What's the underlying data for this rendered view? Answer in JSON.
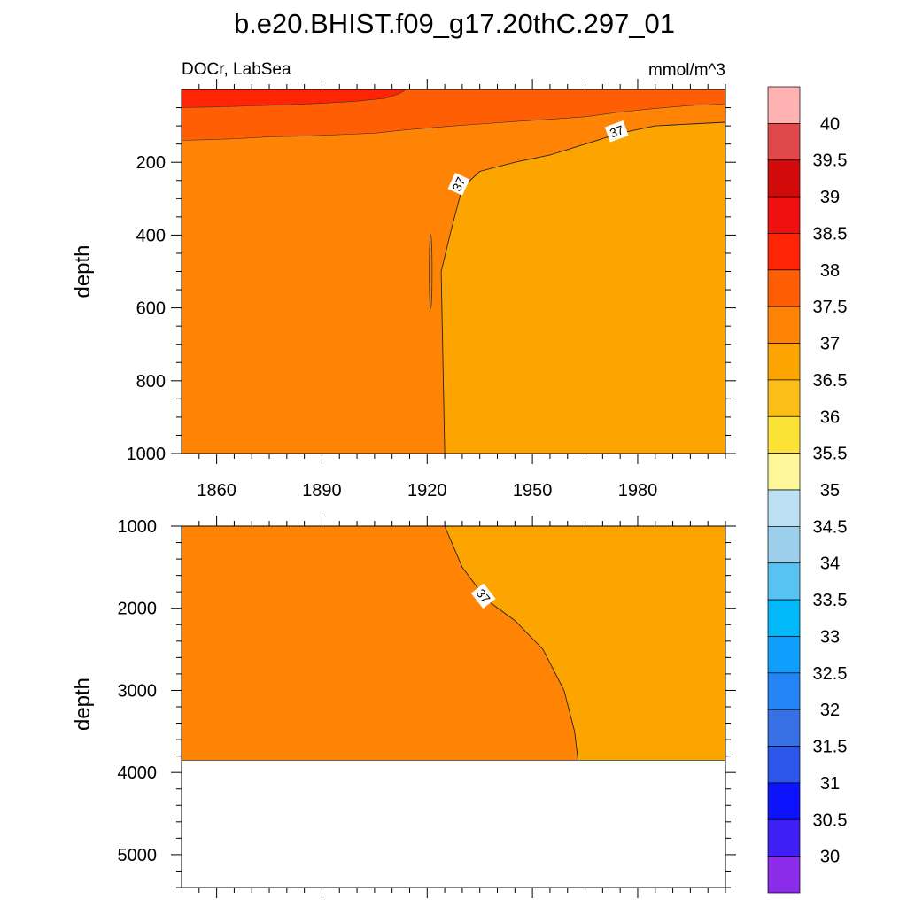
{
  "title": "b.e20.BHIST.f09_g17.20thC.297_01",
  "left_string": "DOCr, LabSea",
  "right_string": "mmol/m^3",
  "chart_data": [
    {
      "type": "heatmap",
      "panel": "upper",
      "variable": "DOCr",
      "region": "LabSea",
      "units": "mmol/m^3",
      "xlabel": "",
      "ylabel": "depth",
      "xlim": [
        1850,
        2005
      ],
      "ylim": [
        1000,
        0
      ],
      "xticks": [
        1860,
        1890,
        1920,
        1950,
        1980
      ],
      "yticks": [
        200,
        400,
        600,
        800,
        1000
      ],
      "contour_labels": [
        "37",
        "37"
      ],
      "regions": [
        {
          "range": "38 - 38.5",
          "x": [
            1850,
            1910
          ],
          "depth": [
            0,
            50
          ]
        },
        {
          "range": "37.5 - 38",
          "x": [
            1850,
            2005
          ],
          "depth": [
            0,
            150
          ]
        },
        {
          "range": "37 - 37.5",
          "x": [
            1850,
            1925
          ],
          "depth": [
            150,
            1000
          ]
        },
        {
          "range": "36.5 - 37",
          "x": [
            1925,
            2005
          ],
          "depth": [
            100,
            1000
          ]
        }
      ],
      "contour_37": {
        "x": [
          1925,
          1924,
          1927,
          1930,
          1935,
          1945,
          1955,
          1965,
          1975,
          1985,
          1995,
          2005
        ],
        "depth": [
          1000,
          500,
          380,
          270,
          225,
          200,
          180,
          150,
          120,
          100,
          95,
          90
        ]
      }
    },
    {
      "type": "heatmap",
      "panel": "lower",
      "xlabel": "",
      "ylabel": "depth",
      "xlim": [
        1850,
        2005
      ],
      "ylim": [
        5400,
        1000
      ],
      "yticks": [
        1000,
        2000,
        3000,
        4000,
        5000
      ],
      "contour_labels": [
        "37"
      ],
      "regions": [
        {
          "range": "37 - 37.5",
          "x": [
            1850,
            1963
          ],
          "depth": [
            1000,
            3850
          ]
        },
        {
          "range": "36.5 - 37",
          "x": [
            1925,
            2005
          ],
          "depth": [
            1000,
            3850
          ]
        }
      ],
      "contour_37": {
        "x": [
          1925,
          1930,
          1937,
          1945,
          1953,
          1959,
          1962,
          1963
        ],
        "depth": [
          1000,
          1500,
          1900,
          2150,
          2500,
          3000,
          3500,
          3850
        ]
      },
      "missing_below_depth": 3850
    }
  ],
  "colorbar": {
    "labels": [
      "40",
      "39.5",
      "39",
      "38.5",
      "38",
      "37.5",
      "37",
      "36.5",
      "36",
      "35.5",
      "35",
      "34.5",
      "34",
      "33.5",
      "33",
      "32.5",
      "32",
      "31.5",
      "31",
      "30.5",
      "30"
    ],
    "colors": [
      "#feb2b2",
      "#e0484a",
      "#d20a0a",
      "#f00f0f",
      "#ff2405",
      "#ff5e05",
      "#ff8405",
      "#fca500",
      "#fbbd18",
      "#fde236",
      "#fdf799",
      "#bbe0f2",
      "#9ccfeb",
      "#56c3f2",
      "#01b8f9",
      "#119ffe",
      "#2384f6",
      "#3670e4",
      "#2a57ea",
      "#0d13fc",
      "#3e1ff5",
      "#8a2ce8"
    ]
  }
}
